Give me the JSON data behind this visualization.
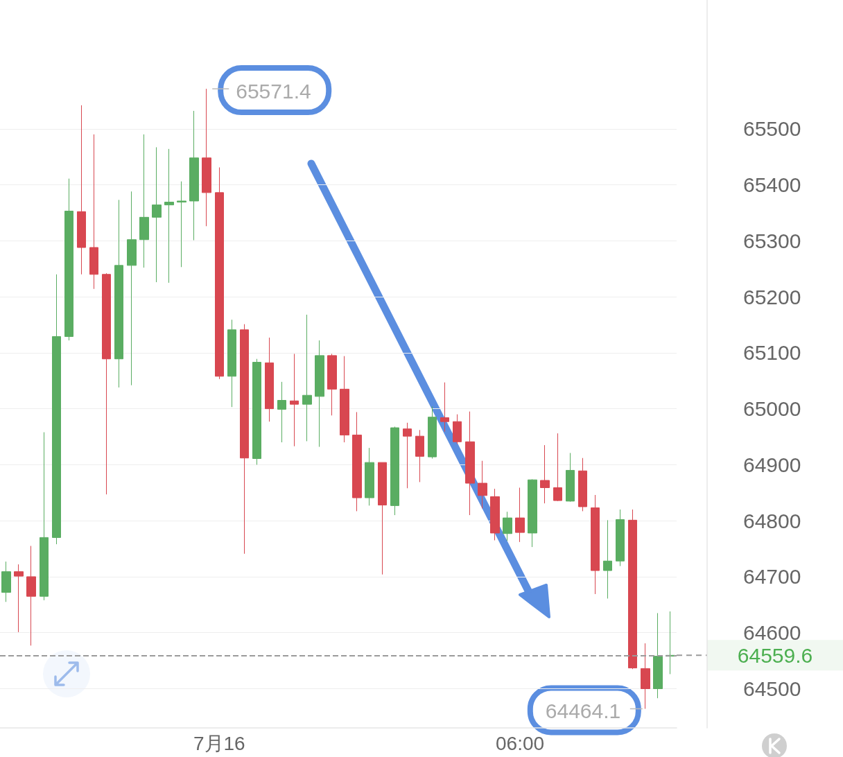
{
  "chart_data": {
    "type": "candlestick",
    "categories": [
      null,
      null,
      null,
      null,
      null,
      null,
      null,
      null,
      null,
      null,
      null,
      null,
      null,
      null,
      null,
      null,
      null,
      "7月16",
      null,
      null,
      null,
      null,
      null,
      null,
      null,
      null,
      null,
      null,
      null,
      null,
      null,
      null,
      null,
      null,
      null,
      null,
      null,
      null,
      null,
      null,
      null,
      "06:00",
      null,
      null,
      null,
      null,
      null,
      null,
      null,
      null,
      null,
      null,
      null,
      null
    ],
    "ohlc": [
      [
        64672,
        64727,
        64655,
        64709
      ],
      [
        64709,
        64722,
        64601,
        64701
      ],
      [
        64700,
        64755,
        64577,
        64665
      ],
      [
        64665,
        64958,
        64658,
        64770
      ],
      [
        64770,
        65240,
        64758,
        65129
      ],
      [
        65129,
        65411,
        65122,
        65353
      ],
      [
        65352,
        65542,
        65240,
        65288
      ],
      [
        65288,
        65490,
        65214,
        65240
      ],
      [
        65240,
        65242,
        64847,
        65089
      ],
      [
        65089,
        65373,
        65038,
        65256
      ],
      [
        65256,
        65388,
        65042,
        65302
      ],
      [
        65302,
        65490,
        65252,
        65342
      ],
      [
        65342,
        65467,
        65226,
        65364
      ],
      [
        65364,
        65464,
        65225,
        65369
      ],
      [
        65369,
        65406,
        65253,
        65371
      ],
      [
        65371,
        65532,
        65301,
        65448
      ],
      [
        65448,
        65571.4,
        65326,
        65386
      ],
      [
        65386,
        65431,
        65053,
        65058
      ],
      [
        65058,
        65159,
        65003,
        65141
      ],
      [
        65141,
        65151,
        64741,
        64912
      ],
      [
        64911,
        65089,
        64900,
        65083
      ],
      [
        65082,
        65127,
        64977,
        65000
      ],
      [
        64999,
        65048,
        64940,
        65015
      ],
      [
        65014,
        65098,
        64933,
        65008
      ],
      [
        65008,
        65168,
        64942,
        65024
      ],
      [
        65022,
        65122,
        64932,
        65095
      ],
      [
        65095,
        65098,
        64988,
        65035
      ],
      [
        65035,
        65094,
        64940,
        64953
      ],
      [
        64953,
        64994,
        64817,
        64841
      ],
      [
        64841,
        64930,
        64827,
        64904
      ],
      [
        64904,
        64904,
        64704,
        64828
      ],
      [
        64827,
        64968,
        64810,
        64966
      ],
      [
        64964,
        64975,
        64858,
        64951
      ],
      [
        64951,
        64962,
        64869,
        64915
      ],
      [
        64914,
        65004,
        64911,
        64985
      ],
      [
        64984,
        65047,
        64959,
        64977
      ],
      [
        64977,
        64990,
        64937,
        64941
      ],
      [
        64941,
        64995,
        64810,
        64867
      ],
      [
        64867,
        64907,
        64822,
        64845
      ],
      [
        64843,
        64857,
        64765,
        64778
      ],
      [
        64777,
        64816,
        64764,
        64805
      ],
      [
        64805,
        64859,
        64762,
        64779
      ],
      [
        64778,
        64874,
        64753,
        64873
      ],
      [
        64872,
        64935,
        64831,
        64859
      ],
      [
        64859,
        64956,
        64835,
        64836
      ],
      [
        64835,
        64921,
        64834,
        64890
      ],
      [
        64889,
        64912,
        64817,
        64825
      ],
      [
        64823,
        64846,
        64669,
        64711
      ],
      [
        64711,
        64801,
        64661,
        64728
      ],
      [
        64728,
        64820,
        64719,
        64802
      ],
      [
        64801,
        64820,
        64535,
        64537
      ],
      [
        64536,
        64581,
        64464.1,
        64500
      ],
      [
        64500,
        64635,
        64483,
        64558
      ],
      [
        64558,
        64638,
        64526,
        64559.6
      ]
    ],
    "colors": [
      "#5aad62",
      "#d84750",
      "#d84750",
      "#5aad62",
      "#5aad62",
      "#5aad62",
      "#d84750",
      "#d84750",
      "#d84750",
      "#5aad62",
      "#5aad62",
      "#5aad62",
      "#5aad62",
      "#5aad62",
      "#5aad62",
      "#5aad62",
      "#d84750",
      "#d84750",
      "#5aad62",
      "#d84750",
      "#5aad62",
      "#d84750",
      "#5aad62",
      "#d84750",
      "#5aad62",
      "#5aad62",
      "#d84750",
      "#d84750",
      "#d84750",
      "#5aad62",
      "#d84750",
      "#5aad62",
      "#d84750",
      "#d84750",
      "#5aad62",
      "#d84750",
      "#d84750",
      "#d84750",
      "#d84750",
      "#d84750",
      "#5aad62",
      "#d84750",
      "#5aad62",
      "#d84750",
      "#d84750",
      "#5aad62",
      "#d84750",
      "#d84750",
      "#5aad62",
      "#5aad62",
      "#d84750",
      "#d84750",
      "#5aad62",
      "#5aad62"
    ],
    "ylim": [
      64430,
      65730
    ],
    "yticks": [
      64500,
      64600,
      64700,
      64800,
      64900,
      65000,
      65100,
      65200,
      65300,
      65400,
      65500
    ],
    "grid": "y",
    "ref_lines": [
      {
        "axis": "y",
        "value": 64559.6,
        "label": "64559.6",
        "color": "#9a9a9a",
        "line_style": "dashed"
      }
    ],
    "annotations": [
      "65571.4",
      "64464.1"
    ]
  }
}
